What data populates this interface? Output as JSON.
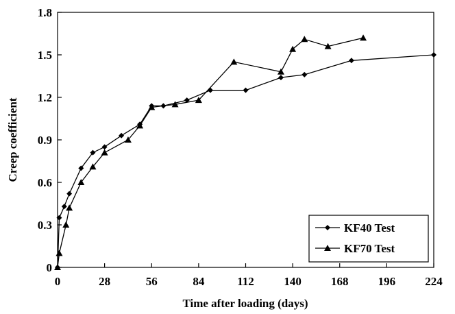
{
  "chart_data": {
    "type": "line",
    "title": "",
    "xlabel": "Time after loading (days)",
    "ylabel": "Creep coefficient",
    "xlim": [
      0,
      224
    ],
    "ylim": [
      0,
      1.8
    ],
    "x_ticks": [
      0,
      28,
      56,
      84,
      112,
      140,
      168,
      196,
      224
    ],
    "x_tick_labels": [
      "0",
      "28",
      "56",
      "84",
      "112",
      "140",
      "168",
      "196",
      "224"
    ],
    "y_ticks": [
      0,
      0.3,
      0.6,
      0.9,
      1.2,
      1.5,
      1.8
    ],
    "y_tick_labels": [
      "0",
      "0.3",
      "0.6",
      "0.9",
      "1.2",
      "1.5",
      "1.8"
    ],
    "grid": false,
    "legend_position": "bottom-right",
    "series": [
      {
        "name": "KF40 Test",
        "marker": "diamond",
        "color": "#000000",
        "x": [
          0,
          1,
          4,
          7,
          14,
          21,
          28,
          38,
          49,
          56,
          63,
          77,
          91,
          112,
          133,
          147,
          175,
          224
        ],
        "y": [
          0,
          0.35,
          0.43,
          0.52,
          0.7,
          0.81,
          0.85,
          0.93,
          1.01,
          1.14,
          1.14,
          1.18,
          1.25,
          1.25,
          1.34,
          1.36,
          1.46,
          1.5
        ]
      },
      {
        "name": "KF70 Test",
        "marker": "triangle",
        "color": "#000000",
        "x": [
          0,
          1,
          5,
          7,
          14,
          21,
          28,
          42,
          49,
          56,
          70,
          84,
          105,
          133,
          140,
          147,
          161,
          182
        ],
        "y": [
          0,
          0.1,
          0.3,
          0.42,
          0.6,
          0.71,
          0.81,
          0.9,
          1.0,
          1.13,
          1.15,
          1.18,
          1.45,
          1.38,
          1.54,
          1.61,
          1.56,
          1.62
        ]
      }
    ]
  }
}
